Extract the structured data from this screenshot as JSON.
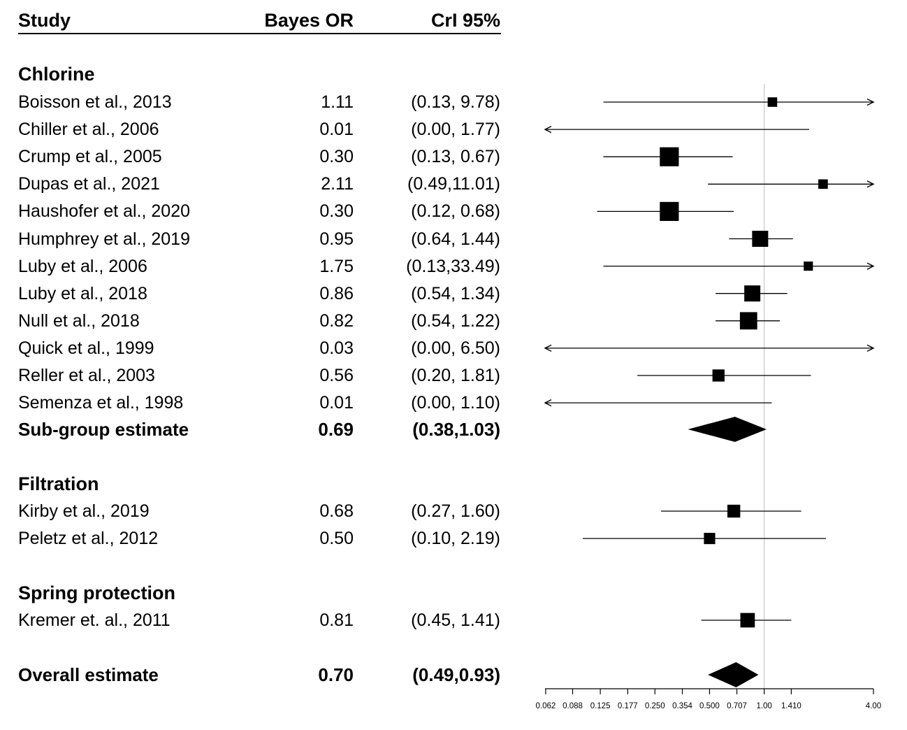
{
  "header": {
    "study": "Study",
    "or": "Bayes OR",
    "ci": "CrI 95%"
  },
  "groups": [
    {
      "title": "Chlorine",
      "subtotal": {
        "label": "Sub-group estimate",
        "or_text": "0.69",
        "ci_text": "(0.38,1.03)",
        "or": 0.69,
        "lo": 0.38,
        "hi": 1.03
      },
      "studies": [
        {
          "study": "Boisson et al., 2013",
          "or_text": "1.11",
          "ci_text": "(0.13, 9.78)",
          "or": 1.11,
          "lo": 0.13,
          "hi": 9.78,
          "weight": 0.9
        },
        {
          "study": "Chiller et al., 2006",
          "or_text": "0.01",
          "ci_text": "(0.00, 1.77)",
          "or": 0.01,
          "lo": 0.0,
          "hi": 1.77,
          "weight": 0
        },
        {
          "study": "Crump et al., 2005",
          "or_text": "0.30",
          "ci_text": "(0.13, 0.67)",
          "or": 0.3,
          "lo": 0.13,
          "hi": 0.67,
          "weight": 7.0
        },
        {
          "study": "Dupas et al., 2021",
          "or_text": "2.11",
          "ci_text": "(0.49,11.01)",
          "or": 2.11,
          "lo": 0.49,
          "hi": 11.01,
          "weight": 0.9
        },
        {
          "study": "Haushofer et al., 2020",
          "or_text": "0.30",
          "ci_text": "(0.12, 0.68)",
          "or": 0.3,
          "lo": 0.12,
          "hi": 0.68,
          "weight": 7.0
        },
        {
          "study": "Humphrey et al., 2019",
          "or_text": "0.95",
          "ci_text": "(0.64, 1.44)",
          "or": 0.95,
          "lo": 0.64,
          "hi": 1.44,
          "weight": 4.5
        },
        {
          "study": "Luby et al., 2006",
          "or_text": "1.75",
          "ci_text": "(0.13,33.49)",
          "or": 1.75,
          "lo": 0.13,
          "hi": 33.49,
          "weight": 0.8
        },
        {
          "study": "Luby et al., 2018",
          "or_text": "0.86",
          "ci_text": "(0.54, 1.34)",
          "or": 0.86,
          "lo": 0.54,
          "hi": 1.34,
          "weight": 4.5
        },
        {
          "study": "Null et al., 2018",
          "or_text": "0.82",
          "ci_text": "(0.54, 1.22)",
          "or": 0.82,
          "lo": 0.54,
          "hi": 1.22,
          "weight": 5.5
        },
        {
          "study": "Quick et al., 1999",
          "or_text": "0.03",
          "ci_text": "(0.00, 6.50)",
          "or": 0.03,
          "lo": 0.0,
          "hi": 6.5,
          "weight": 0
        },
        {
          "study": "Reller et al., 2003",
          "or_text": "0.56",
          "ci_text": "(0.20, 1.81)",
          "or": 0.56,
          "lo": 0.2,
          "hi": 1.81,
          "weight": 2.0
        },
        {
          "study": "Semenza et al., 1998",
          "or_text": "0.01",
          "ci_text": "(0.00, 1.10)",
          "or": 0.01,
          "lo": 0.0,
          "hi": 1.1,
          "weight": 0
        }
      ]
    },
    {
      "title": "Filtration",
      "studies": [
        {
          "study": "Kirby et al., 2019",
          "or_text": "0.68",
          "ci_text": "(0.27, 1.60)",
          "or": 0.68,
          "lo": 0.27,
          "hi": 1.6,
          "weight": 2.4
        },
        {
          "study": "Peletz et al., 2012",
          "or_text": "0.50",
          "ci_text": "(0.10, 2.19)",
          "or": 0.5,
          "lo": 0.1,
          "hi": 2.19,
          "weight": 1.6
        }
      ]
    },
    {
      "title": "Spring protection",
      "studies": [
        {
          "study": "Kremer et. al., 2011",
          "or_text": "0.81",
          "ci_text": "(0.45, 1.41)",
          "or": 0.81,
          "lo": 0.45,
          "hi": 1.41,
          "weight": 3.4
        }
      ]
    }
  ],
  "overall": {
    "label": "Overall estimate",
    "or_text": "0.70",
    "ci_text": "(0.49,0.93)",
    "or": 0.7,
    "lo": 0.49,
    "hi": 0.93
  },
  "chart_data": {
    "type": "forest",
    "x_scale": "log2",
    "xlim": [
      0.062,
      4.0
    ],
    "x_ticks": [
      {
        "v": 0.0625,
        "label": "0.062"
      },
      {
        "v": 0.088,
        "label": "0.088"
      },
      {
        "v": 0.125,
        "label": "0.125"
      },
      {
        "v": 0.177,
        "label": "0.177"
      },
      {
        "v": 0.25,
        "label": "0.250"
      },
      {
        "v": 0.354,
        "label": "0.354"
      },
      {
        "v": 0.5,
        "label": "0.500"
      },
      {
        "v": 0.707,
        "label": "0.707"
      },
      {
        "v": 1.0,
        "label": "1.00"
      },
      {
        "v": 1.41,
        "label": "1.410"
      },
      {
        "v": 4.0,
        "label": "4.00"
      }
    ],
    "reference_line": 1.0,
    "colors": {
      "marks": "#000000",
      "reference": "#c8c8c8"
    }
  }
}
